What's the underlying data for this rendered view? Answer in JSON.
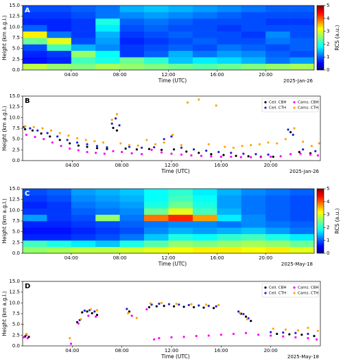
{
  "chart_data": [
    {
      "type": "heatmap",
      "panel_label": "A",
      "date_label": "2025-Jan-26",
      "xlabel": "Time (UTC)",
      "ylabel": "Height (km a.g.l.)",
      "xlim": [
        0,
        24
      ],
      "ylim": [
        0,
        15
      ],
      "xticks": [
        {
          "value": 4,
          "label": "04:00"
        },
        {
          "value": 8,
          "label": "08:00"
        },
        {
          "value": 12,
          "label": "12:00"
        },
        {
          "value": 16,
          "label": "16:00"
        },
        {
          "value": 20,
          "label": "20:00"
        }
      ],
      "yticks": [
        {
          "value": 0,
          "label": "0.0"
        },
        {
          "value": 2.5,
          "label": "2.5"
        },
        {
          "value": 5,
          "label": "5.0"
        },
        {
          "value": 7.5,
          "label": "7.5"
        },
        {
          "value": 10,
          "label": "10.0"
        },
        {
          "value": 12.5,
          "label": "12.5"
        },
        {
          "value": 15,
          "label": "15.0"
        }
      ],
      "xbins": [
        0,
        2,
        4,
        6,
        8,
        10,
        12,
        14,
        16,
        18,
        20,
        22,
        24
      ],
      "ybins": [
        0,
        1.5,
        3,
        4.5,
        6,
        7.5,
        9,
        10.5,
        12,
        13.5,
        15
      ],
      "z": [
        [
          2.8,
          2.6,
          2.5,
          2.7,
          2.6,
          2.5,
          2.4,
          2.3,
          2.4,
          2.5,
          2.6,
          2.7
        ],
        [
          0.7,
          0.8,
          2.2,
          2.0,
          2.4,
          2.1,
          1.6,
          1.8,
          1.7,
          1.5,
          1.2,
          1.4
        ],
        [
          0.8,
          0.9,
          2.6,
          1.9,
          0.9,
          1.1,
          1.5,
          1.2,
          1.4,
          1.3,
          1.1,
          1.0
        ],
        [
          1.0,
          2.2,
          1.5,
          1.3,
          0.9,
          1.0,
          1.1,
          1.0,
          1.2,
          1.1,
          1.0,
          1.1
        ],
        [
          2.4,
          3.0,
          1.0,
          1.4,
          0.8,
          0.9,
          1.0,
          1.1,
          1.0,
          1.0,
          1.2,
          1.1
        ],
        [
          3.2,
          1.2,
          0.9,
          1.5,
          0.9,
          1.0,
          1.1,
          1.0,
          1.0,
          0.9,
          1.3,
          1.0
        ],
        [
          1.1,
          0.8,
          0.9,
          1.8,
          1.0,
          1.1,
          1.0,
          1.0,
          0.9,
          1.0,
          1.0,
          1.0
        ],
        [
          0.8,
          0.8,
          0.9,
          2.0,
          1.1,
          1.2,
          1.1,
          1.0,
          1.0,
          1.0,
          0.9,
          0.9
        ],
        [
          0.9,
          0.9,
          1.0,
          1.2,
          1.3,
          1.4,
          1.3,
          1.2,
          1.1,
          1.0,
          1.0,
          1.0
        ],
        [
          1.0,
          1.0,
          1.1,
          1.2,
          1.5,
          1.6,
          1.5,
          1.4,
          1.3,
          1.2,
          1.1,
          1.1
        ]
      ],
      "colorbar": {
        "label": "RCS (a.u.)",
        "lim": [
          0,
          5
        ],
        "ticks": [
          0,
          1,
          2,
          3,
          4,
          5
        ],
        "colormap": "jet"
      }
    },
    {
      "type": "scatter",
      "panel_label": "B",
      "date_label": "2025-Jan-26",
      "xlabel": "Time (UTC)",
      "ylabel": "Height (km a.g.l.)",
      "xlim": [
        0,
        24
      ],
      "ylim": [
        0,
        15
      ],
      "xticks": [
        {
          "value": 4,
          "label": "04:00"
        },
        {
          "value": 8,
          "label": "08:00"
        },
        {
          "value": 12,
          "label": "12:00"
        },
        {
          "value": 16,
          "label": "16:00"
        },
        {
          "value": 20,
          "label": "20:00"
        }
      ],
      "yticks": [
        {
          "value": 0,
          "label": "0.0"
        },
        {
          "value": 2.5,
          "label": "2.5"
        },
        {
          "value": 5,
          "label": "5.0"
        },
        {
          "value": 7.5,
          "label": "7.5"
        },
        {
          "value": 10,
          "label": "10.0"
        },
        {
          "value": 12.5,
          "label": "12.5"
        },
        {
          "value": 15,
          "label": "15.0"
        }
      ],
      "legend": "upper right",
      "series": [
        {
          "name": "Ceil. CBH",
          "color": "#000000",
          "x": [
            0.2,
            0.8,
            1.5,
            2.2,
            3,
            3.8,
            4.5,
            5.2,
            6,
            6.8,
            7.3,
            7.6,
            8.3,
            9.2,
            10.2,
            11.2,
            12.2,
            13.2,
            14.2,
            15.2,
            16.2,
            17.2,
            18.2,
            19.2,
            20.2,
            21.6,
            22.3,
            23.2
          ],
          "values": [
            7.3,
            7.0,
            6.3,
            5.6,
            4.8,
            4.0,
            3.5,
            3.2,
            2.9,
            2.7,
            7.6,
            7.0,
            2.8,
            2.6,
            2.7,
            2.5,
            2.6,
            2.1,
            1.8,
            1.5,
            1.3,
            1.1,
            1.0,
            0.9,
            0.9,
            6.6,
            2.0,
            1.7
          ]
        },
        {
          "name": "Ceil. CTH",
          "color": "#1f1fd6",
          "x": [
            0.1,
            0.6,
            1.2,
            2,
            2.8,
            3.6,
            4.4,
            5.2,
            6,
            6.8,
            7.2,
            7.5,
            7.8,
            8.6,
            9.6,
            10.6,
            11.4,
            12,
            12.8,
            13.8,
            14.8,
            15.8,
            16.8,
            17.8,
            18.8,
            19.8,
            21.4,
            21.8,
            22.6,
            23.6
          ],
          "values": [
            7.8,
            7.5,
            7.0,
            6.4,
            5.6,
            4.8,
            4.2,
            3.8,
            3.4,
            3.1,
            8.6,
            9.8,
            8.2,
            3.2,
            3.0,
            3.1,
            5.0,
            5.6,
            3.0,
            2.6,
            2.3,
            2.0,
            1.8,
            1.6,
            1.5,
            1.4,
            7.2,
            6.0,
            2.6,
            2.2
          ]
        },
        {
          "name": "Cams. CBH",
          "color": "#ff00ff",
          "x": [
            0.3,
            1,
            1.7,
            2.4,
            3.1,
            3.8,
            4.5,
            5.2,
            5.9,
            6.6,
            7.3,
            8,
            8.8,
            9.6,
            10.4,
            11.2,
            12,
            12.8,
            13.6,
            14.4,
            15.2,
            16,
            16.8,
            17.6,
            18.4,
            19.2,
            20,
            20.8,
            21.6,
            22.4,
            23.2,
            23.8
          ],
          "values": [
            6.0,
            5.5,
            5.0,
            4.2,
            3.4,
            2.8,
            2.4,
            2.0,
            1.8,
            1.6,
            2.2,
            2.0,
            1.7,
            1.5,
            2.5,
            1.9,
            1.6,
            1.4,
            1.2,
            1.1,
            1.0,
            0.9,
            0.9,
            0.8,
            0.8,
            0.8,
            0.9,
            1.0,
            1.5,
            1.6,
            1.4,
            1.2
          ]
        },
        {
          "name": "Cams. CTH",
          "color": "#ffa500",
          "x": [
            0.2,
            0.9,
            1.6,
            2.3,
            3,
            3.7,
            4.4,
            5.1,
            5.8,
            6.5,
            7.2,
            7.6,
            7.9,
            8.6,
            9.3,
            10,
            10.7,
            11.4,
            12.1,
            12.8,
            13.3,
            14.2,
            15,
            15.6,
            16.3,
            17,
            17.7,
            18.4,
            19.1,
            19.8,
            20.5,
            21.2,
            21.9,
            22.6,
            23.3,
            23.9
          ],
          "values": [
            8.0,
            7.8,
            7.5,
            7.0,
            6.4,
            5.8,
            5.2,
            4.8,
            4.5,
            4.2,
            9.5,
            10.8,
            4.0,
            3.6,
            3.5,
            4.8,
            3.8,
            4.2,
            6.0,
            3.6,
            13.5,
            14.2,
            3.8,
            12.8,
            3.2,
            3.0,
            3.4,
            3.6,
            3.8,
            4.2,
            4.0,
            5.0,
            7.5,
            4.4,
            3.4,
            4.0
          ]
        }
      ]
    },
    {
      "type": "heatmap",
      "panel_label": "C",
      "date_label": "2025-May-18",
      "xlabel": "Time (UTC)",
      "ylabel": "Height (km a.g.l.)",
      "xlim": [
        0,
        24
      ],
      "ylim": [
        0,
        15
      ],
      "xticks": [
        {
          "value": 4,
          "label": "04:00"
        },
        {
          "value": 8,
          "label": "08:00"
        },
        {
          "value": 12,
          "label": "12:00"
        },
        {
          "value": 16,
          "label": "16:00"
        },
        {
          "value": 20,
          "label": "20:00"
        }
      ],
      "yticks": [
        {
          "value": 0,
          "label": "0.0"
        },
        {
          "value": 2.5,
          "label": "2.5"
        },
        {
          "value": 5,
          "label": "5.0"
        },
        {
          "value": 7.5,
          "label": "7.5"
        },
        {
          "value": 10,
          "label": "10.0"
        },
        {
          "value": 12.5,
          "label": "12.5"
        },
        {
          "value": 15,
          "label": "15.0"
        }
      ],
      "xbins": [
        0,
        2,
        4,
        6,
        8,
        10,
        12,
        14,
        16,
        18,
        20,
        22,
        24
      ],
      "ybins": [
        0,
        1.5,
        3,
        4.5,
        6,
        7.5,
        9,
        10.5,
        12,
        13.5,
        15
      ],
      "z": [
        [
          2.6,
          2.7,
          2.8,
          2.8,
          2.9,
          3.0,
          3.1,
          3.2,
          3.2,
          3.1,
          3.2,
          3.0
        ],
        [
          2.2,
          2.0,
          1.8,
          1.6,
          2.0,
          2.3,
          2.6,
          2.5,
          2.6,
          2.7,
          2.6,
          2.4
        ],
        [
          0.8,
          0.8,
          0.9,
          1.0,
          1.2,
          1.6,
          2.0,
          1.9,
          2.1,
          2.2,
          2.0,
          1.8
        ],
        [
          0.7,
          0.7,
          0.8,
          0.9,
          1.0,
          1.3,
          1.5,
          1.4,
          1.5,
          1.6,
          1.4,
          1.2
        ],
        [
          0.8,
          0.8,
          0.9,
          1.0,
          1.1,
          1.2,
          1.3,
          1.3,
          1.2,
          1.3,
          1.2,
          1.1
        ],
        [
          1.4,
          0.9,
          1.0,
          2.6,
          1.2,
          3.8,
          4.2,
          3.6,
          1.8,
          1.3,
          1.1,
          1.0
        ],
        [
          0.9,
          0.9,
          1.1,
          1.2,
          1.3,
          2.4,
          3.0,
          2.2,
          1.5,
          1.2,
          1.1,
          1.0
        ],
        [
          0.8,
          0.9,
          1.2,
          1.3,
          1.4,
          2.0,
          2.4,
          2.0,
          1.4,
          1.2,
          1.1,
          1.0
        ],
        [
          0.9,
          1.0,
          1.3,
          1.4,
          1.5,
          1.9,
          2.2,
          1.9,
          1.4,
          1.2,
          1.1,
          1.0
        ],
        [
          1.0,
          1.1,
          1.4,
          1.5,
          1.6,
          1.9,
          2.1,
          1.8,
          1.5,
          1.3,
          1.2,
          1.1
        ]
      ],
      "colorbar": {
        "label": "RCS (a.u.)",
        "lim": [
          0,
          5
        ],
        "ticks": [
          0,
          1,
          2,
          3,
          4,
          5
        ],
        "colormap": "jet"
      }
    },
    {
      "type": "scatter",
      "panel_label": "D",
      "date_label": "2025-May-18",
      "xlabel": "Time (UTC)",
      "ylabel": "Height (km a.g.l.)",
      "xlim": [
        0,
        24
      ],
      "ylim": [
        0,
        15
      ],
      "xticks": [
        {
          "value": 4,
          "label": "04:00"
        },
        {
          "value": 8,
          "label": "08:00"
        },
        {
          "value": 12,
          "label": "12:00"
        },
        {
          "value": 16,
          "label": "16:00"
        },
        {
          "value": 20,
          "label": "20:00"
        }
      ],
      "yticks": [
        {
          "value": 0,
          "label": "0.0"
        },
        {
          "value": 2.5,
          "label": "2.5"
        },
        {
          "value": 5,
          "label": "5.0"
        },
        {
          "value": 7.5,
          "label": "7.5"
        },
        {
          "value": 10,
          "label": "10.0"
        },
        {
          "value": 12.5,
          "label": "12.5"
        },
        {
          "value": 15,
          "label": "15.0"
        }
      ],
      "legend": "upper right",
      "series": [
        {
          "name": "Ceil. CBH",
          "color": "#000000",
          "x": [
            0.2,
            0.5,
            4.4,
            4.8,
            5.2,
            5.6,
            6,
            8.6,
            10.2,
            10.8,
            11.4,
            12.2,
            13,
            13.8,
            14.6,
            15.4,
            17.6,
            18,
            18.4,
            20.5,
            21.5,
            22.5,
            23.5
          ],
          "values": [
            2.2,
            2.1,
            5.5,
            7.8,
            8.0,
            7.6,
            7.2,
            8.0,
            9.0,
            9.2,
            9.3,
            9.2,
            9.1,
            9.0,
            8.9,
            8.8,
            7.5,
            6.8,
            5.8,
            2.8,
            2.7,
            2.6,
            2.3
          ]
        },
        {
          "name": "Ceil. CTH",
          "color": "#1f1fd6",
          "x": [
            0.3,
            4.6,
            5,
            5.4,
            5.8,
            8.4,
            10.4,
            11,
            11.8,
            12.6,
            13.4,
            14.2,
            15,
            15.6,
            17.4,
            17.8,
            18.2,
            20,
            21,
            22,
            23
          ],
          "values": [
            2.6,
            6.0,
            8.2,
            8.3,
            8.0,
            8.6,
            9.6,
            9.8,
            9.7,
            9.6,
            9.5,
            9.4,
            9.3,
            9.2,
            8.0,
            7.4,
            6.4,
            3.2,
            3.1,
            3.0,
            2.8
          ]
        },
        {
          "name": "Cams. CBH",
          "color": "#ff00ff",
          "x": [
            0.1,
            0.4,
            3.9,
            4.5,
            5.3,
            5.9,
            8.8,
            10,
            10.6,
            11,
            12,
            13,
            14,
            15,
            16,
            17,
            18,
            19,
            20,
            21,
            22,
            23,
            23.7
          ],
          "values": [
            2.0,
            1.8,
            0.5,
            5.2,
            7.0,
            6.8,
            7.0,
            8.5,
            1.5,
            1.8,
            2.0,
            2.1,
            2.3,
            2.4,
            2.6,
            2.8,
            3.0,
            2.6,
            2.4,
            2.2,
            2.0,
            1.8,
            1.5
          ]
        },
        {
          "name": "Cams. CTH",
          "color": "#ffa500",
          "x": [
            0,
            0.3,
            3.8,
            4.7,
            5.5,
            6,
            8.5,
            9.2,
            10.3,
            11.2,
            12.4,
            13.6,
            14.8,
            15.8,
            17.5,
            18.1,
            20.2,
            21.2,
            22.2,
            23,
            23.8
          ],
          "values": [
            5.0,
            2.8,
            1.8,
            6.2,
            8.5,
            8.3,
            7.6,
            6.5,
            9.9,
            10.0,
            9.8,
            9.7,
            9.6,
            9.5,
            7.6,
            6.2,
            4.0,
            3.8,
            3.6,
            4.2,
            3.5
          ]
        }
      ]
    }
  ]
}
